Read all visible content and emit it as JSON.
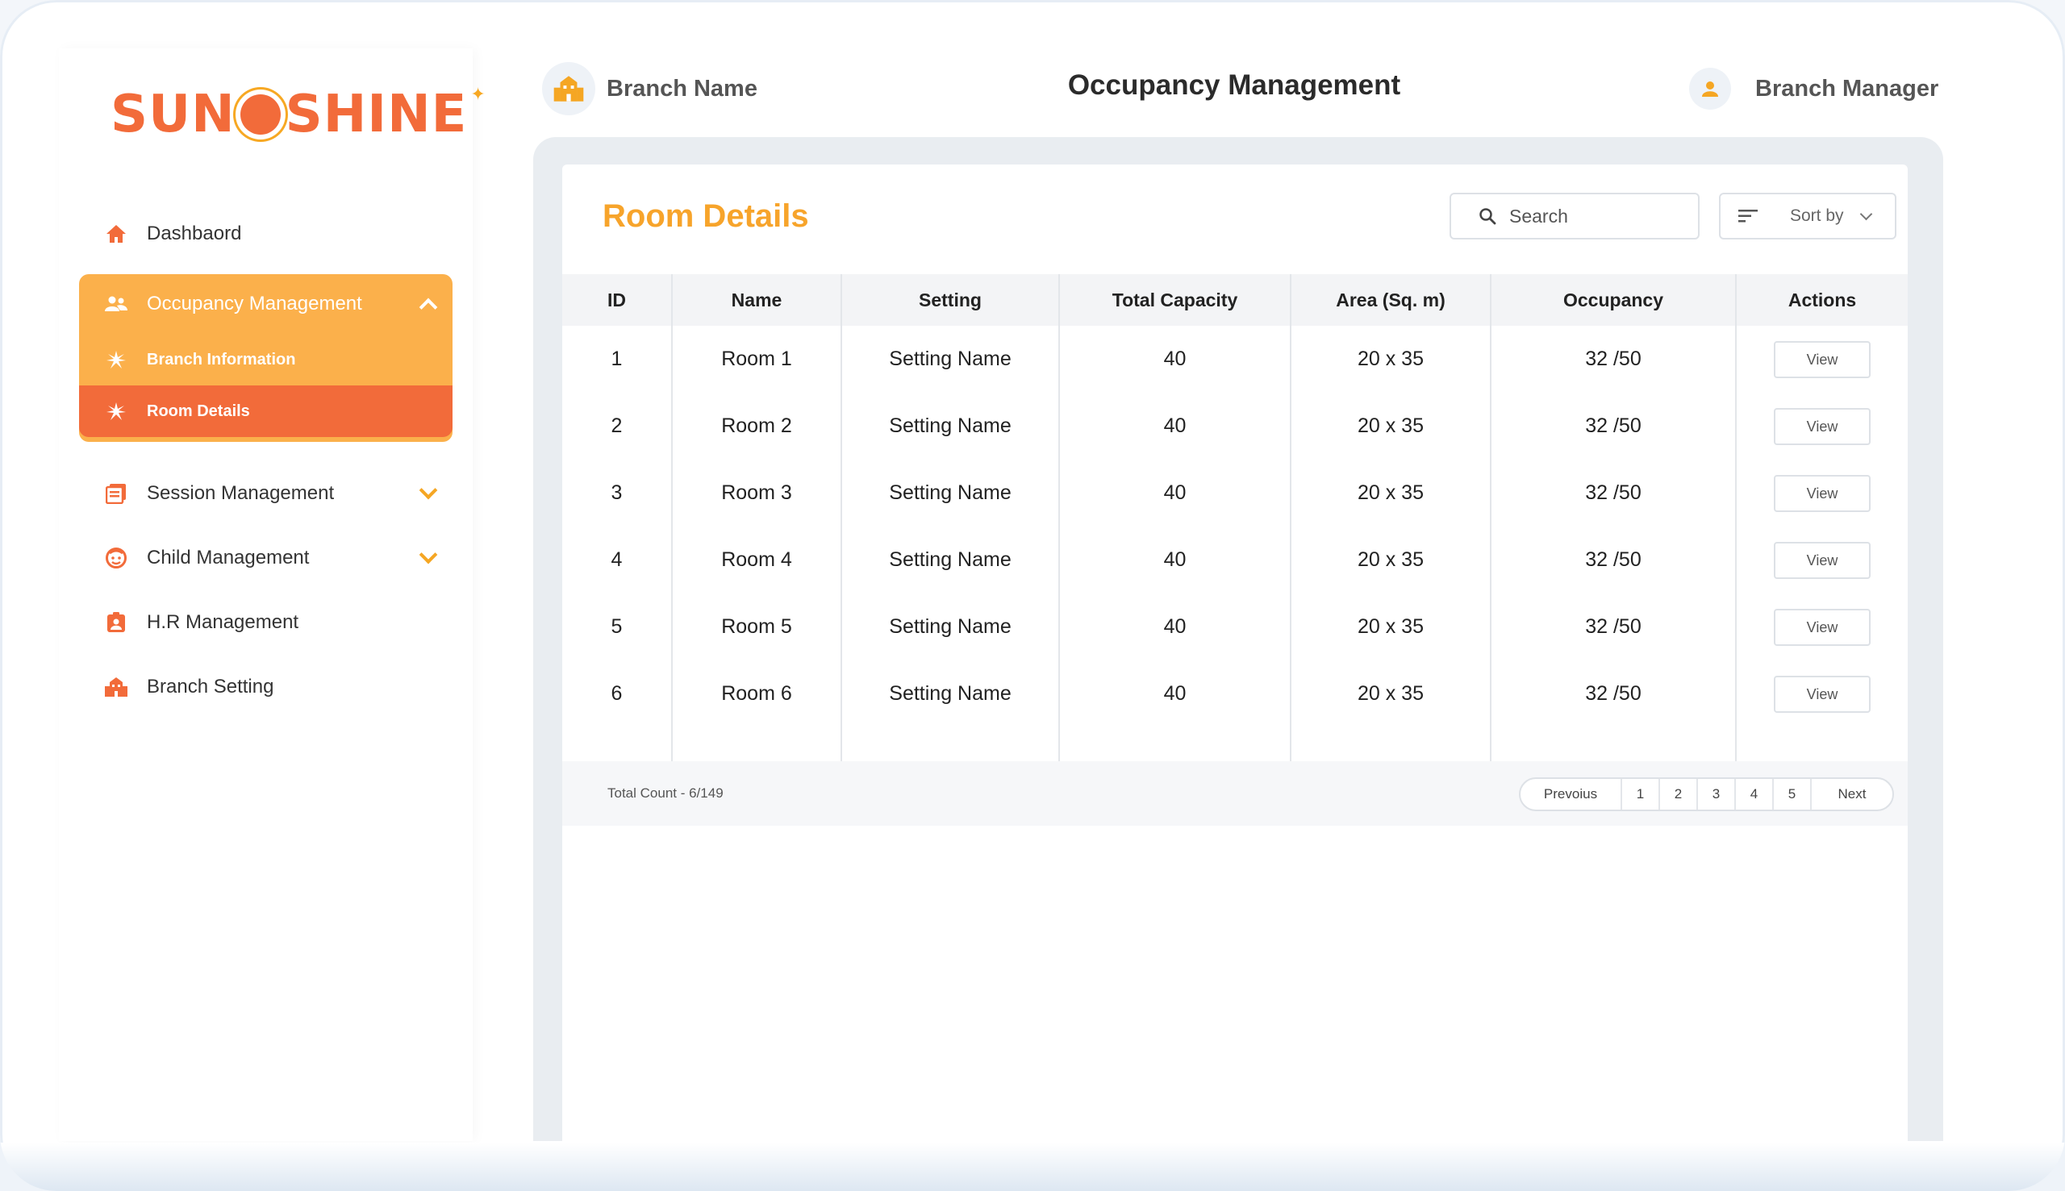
{
  "brand": {
    "logo_left": "SUN",
    "logo_right": "SHINE"
  },
  "header": {
    "branch_name": "Branch Name",
    "page_title": "Occupancy Management",
    "user_role": "Branch Manager"
  },
  "sidebar": {
    "items": [
      {
        "label": "Dashbaord",
        "icon": "home-icon"
      },
      {
        "label": "Occupancy Management",
        "icon": "people-icon",
        "expanded": true,
        "children": [
          {
            "label": "Branch Information",
            "icon": "sparkle-icon"
          },
          {
            "label": "Room Details",
            "icon": "sparkle-icon",
            "active": true
          }
        ]
      },
      {
        "label": "Session Management",
        "icon": "document-icon"
      },
      {
        "label": "Child Management",
        "icon": "child-face-icon"
      },
      {
        "label": "H.R Management",
        "icon": "badge-icon"
      },
      {
        "label": "Branch Setting",
        "icon": "building-icon"
      }
    ]
  },
  "main": {
    "card_title": "Room Details",
    "search_placeholder": "Search",
    "sort_label": "Sort by",
    "columns": [
      "ID",
      "Name",
      "Setting",
      "Total Capacity",
      "Area (Sq. m)",
      "Occupancy",
      "Actions"
    ],
    "rows": [
      {
        "id": "1",
        "name": "Room 1",
        "setting": "Setting Name",
        "capacity": "40",
        "area": "20 x 35",
        "occupancy": "32 /50",
        "action": "View"
      },
      {
        "id": "2",
        "name": "Room 2",
        "setting": "Setting Name",
        "capacity": "40",
        "area": "20 x 35",
        "occupancy": "32 /50",
        "action": "View"
      },
      {
        "id": "3",
        "name": "Room 3",
        "setting": "Setting Name",
        "capacity": "40",
        "area": "20 x 35",
        "occupancy": "32 /50",
        "action": "View"
      },
      {
        "id": "4",
        "name": "Room 4",
        "setting": "Setting Name",
        "capacity": "40",
        "area": "20 x 35",
        "occupancy": "32 /50",
        "action": "View"
      },
      {
        "id": "5",
        "name": "Room 5",
        "setting": "Setting Name",
        "capacity": "40",
        "area": "20 x 35",
        "occupancy": "32 /50",
        "action": "View"
      },
      {
        "id": "6",
        "name": "Room 6",
        "setting": "Setting Name",
        "capacity": "40",
        "area": "20 x 35",
        "occupancy": "32 /50",
        "action": "View"
      }
    ],
    "total_count": "Total Count - 6/149",
    "pagination": {
      "previous": "Prevoius",
      "pages": [
        "1",
        "2",
        "3",
        "4",
        "5"
      ],
      "next": "Next"
    }
  },
  "colors": {
    "accent_orange": "#f7a42b",
    "active_red_orange": "#f26b3a",
    "group_bg": "#fbb04b"
  }
}
